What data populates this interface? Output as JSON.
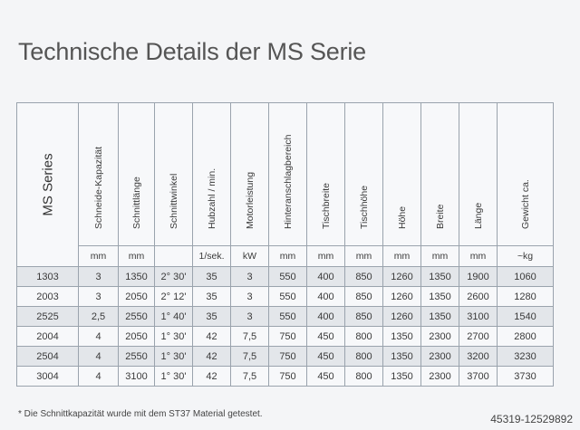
{
  "title": "Technische Details der MS Serie",
  "table": {
    "series_header": "MS Series",
    "columns": [
      {
        "label": "Schneide-Kapazität",
        "unit": "mm"
      },
      {
        "label": "Schnittlänge",
        "unit": "mm"
      },
      {
        "label": "Schnittwinkel",
        "unit": ""
      },
      {
        "label": "Hubzahl / min.",
        "unit": "1/sek."
      },
      {
        "label": "Motorleistung",
        "unit": "kW"
      },
      {
        "label": "Hinteranschlagbereich",
        "unit": "mm"
      },
      {
        "label": "Tischbreite",
        "unit": "mm"
      },
      {
        "label": "Tischhöhe",
        "unit": "mm"
      },
      {
        "label": "Höhe",
        "unit": "mm"
      },
      {
        "label": "Breite",
        "unit": "mm"
      },
      {
        "label": "Länge",
        "unit": "mm"
      },
      {
        "label": "Gewicht ca.",
        "unit": "~kg"
      }
    ],
    "rows": [
      [
        "1303",
        "3",
        "1350",
        "2° 30'",
        "35",
        "3",
        "550",
        "400",
        "850",
        "1260",
        "1350",
        "1900",
        "1060"
      ],
      [
        "2003",
        "3",
        "2050",
        "2° 12'",
        "35",
        "3",
        "550",
        "400",
        "850",
        "1260",
        "1350",
        "2600",
        "1280"
      ],
      [
        "2525",
        "2,5",
        "2550",
        "1° 40'",
        "35",
        "3",
        "550",
        "400",
        "850",
        "1260",
        "1350",
        "3100",
        "1540"
      ],
      [
        "2004",
        "4",
        "2050",
        "1° 30'",
        "42",
        "7,5",
        "750",
        "450",
        "800",
        "1350",
        "2300",
        "2700",
        "2800"
      ],
      [
        "2504",
        "4",
        "2550",
        "1° 30'",
        "42",
        "7,5",
        "750",
        "450",
        "800",
        "1350",
        "2300",
        "3200",
        "3230"
      ],
      [
        "3004",
        "4",
        "3100",
        "1° 30'",
        "42",
        "7,5",
        "750",
        "450",
        "800",
        "1350",
        "2300",
        "3700",
        "3730"
      ]
    ]
  },
  "footnote": "* Die Schnittkapazität wurde mit dem ST37 Material getestet.",
  "watermark": "45319-12529892"
}
